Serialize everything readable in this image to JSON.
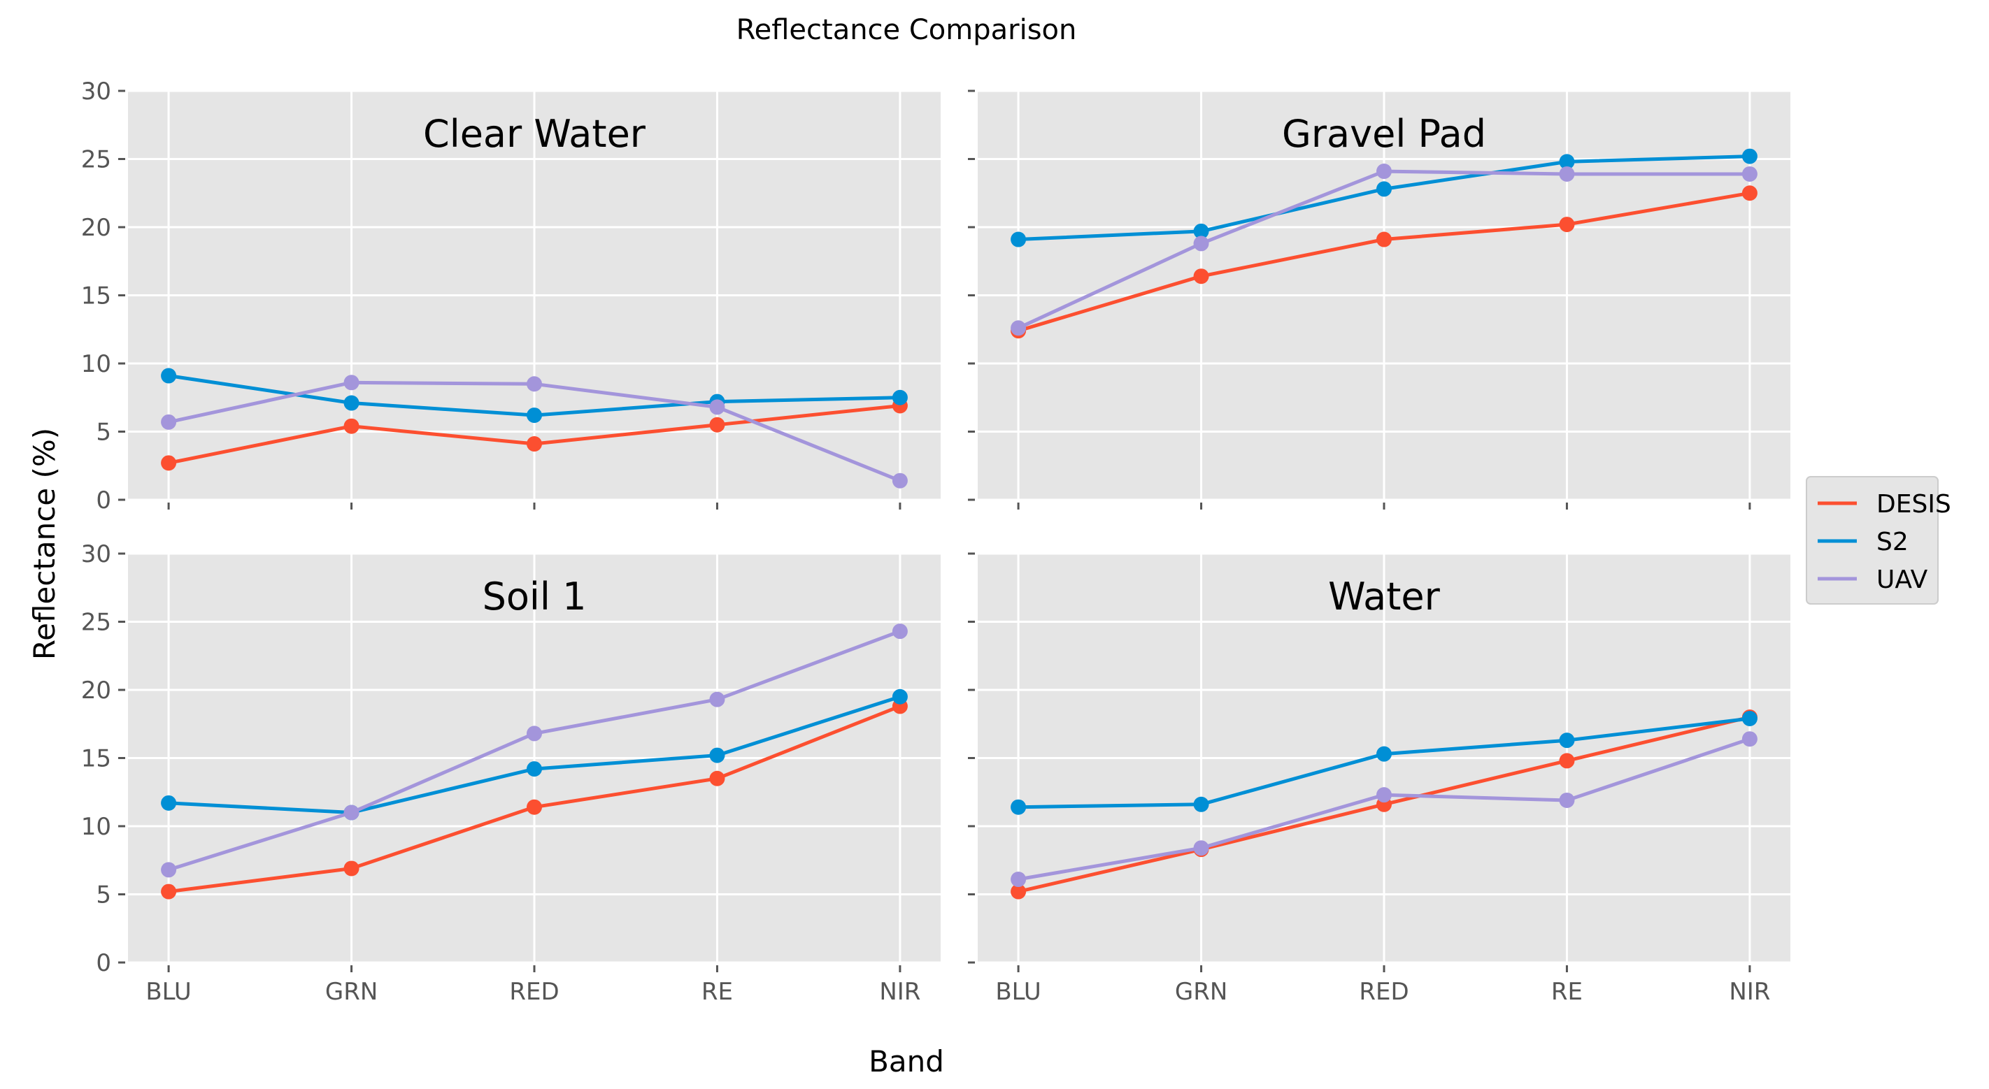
{
  "chart_data": {
    "type": "line",
    "title": "Reflectance Comparison",
    "xlabel": "Band",
    "ylabel": "Reflectance (%)",
    "categories": [
      "BLU",
      "GRN",
      "RED",
      "RE",
      "NIR"
    ],
    "ylim": [
      0,
      30
    ],
    "yticks": [
      0,
      5,
      10,
      15,
      20,
      25,
      30
    ],
    "grid": true,
    "legend_position": "right",
    "series_colors": {
      "DESIS": "#fc4f30",
      "S2": "#008fd5",
      "UAV": "#a395db"
    },
    "legend": [
      "DESIS",
      "S2",
      "UAV"
    ],
    "panels": [
      {
        "title": "Clear Water",
        "series": [
          {
            "name": "DESIS",
            "values": [
              2.7,
              5.4,
              4.1,
              5.5,
              6.9
            ]
          },
          {
            "name": "S2",
            "values": [
              9.1,
              7.1,
              6.2,
              7.2,
              7.5
            ]
          },
          {
            "name": "UAV",
            "values": [
              5.7,
              8.6,
              8.5,
              6.8,
              1.4
            ]
          }
        ]
      },
      {
        "title": "Gravel Pad",
        "series": [
          {
            "name": "DESIS",
            "values": [
              12.4,
              16.4,
              19.1,
              20.2,
              22.5
            ]
          },
          {
            "name": "S2",
            "values": [
              19.1,
              19.7,
              22.8,
              24.8,
              25.2
            ]
          },
          {
            "name": "UAV",
            "values": [
              12.6,
              18.8,
              24.1,
              23.9,
              23.9
            ]
          }
        ]
      },
      {
        "title": "Soil 1",
        "series": [
          {
            "name": "DESIS",
            "values": [
              5.2,
              6.9,
              11.4,
              13.5,
              18.8
            ]
          },
          {
            "name": "S2",
            "values": [
              11.7,
              11.0,
              14.2,
              15.2,
              19.5
            ]
          },
          {
            "name": "UAV",
            "values": [
              6.8,
              11.0,
              16.8,
              19.3,
              24.3
            ]
          }
        ]
      },
      {
        "title": "Water",
        "series": [
          {
            "name": "DESIS",
            "values": [
              5.2,
              8.3,
              11.6,
              14.8,
              18.0
            ]
          },
          {
            "name": "S2",
            "values": [
              11.4,
              11.6,
              15.3,
              16.3,
              17.9
            ]
          },
          {
            "name": "UAV",
            "values": [
              6.1,
              8.4,
              12.3,
              11.9,
              16.4
            ]
          }
        ]
      }
    ]
  }
}
